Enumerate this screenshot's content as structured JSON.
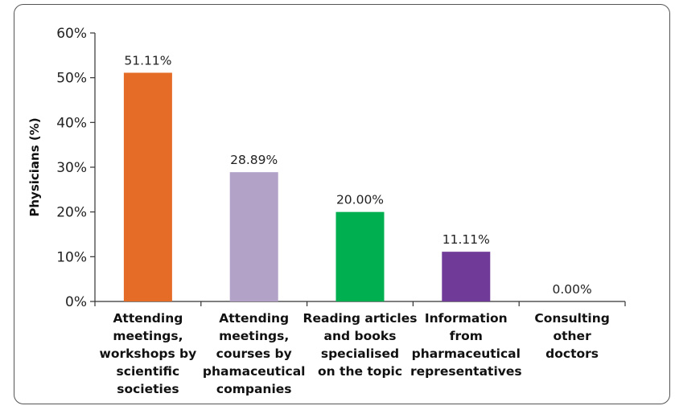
{
  "chart_data": {
    "type": "bar",
    "title": "",
    "xlabel": "",
    "ylabel": "Physicians (%)",
    "ylim": [
      0,
      60
    ],
    "yticks": [
      0,
      10,
      20,
      30,
      40,
      50,
      60
    ],
    "ytick_labels": [
      "0%",
      "10%",
      "20%",
      "30%",
      "40%",
      "50%",
      "60%"
    ],
    "grid": false,
    "legend": "none",
    "categories": [
      [
        "Attending",
        "meetings,",
        "workshops by",
        "scientific",
        "societies"
      ],
      [
        "Attending",
        "meetings,",
        "courses by",
        "phamaceutical",
        "companies"
      ],
      [
        "Reading articles",
        "and books",
        "specialised",
        "on the topic"
      ],
      [
        "Information",
        "from",
        "pharmaceutical",
        "representatives"
      ],
      [
        "Consulting",
        "other",
        "doctors"
      ]
    ],
    "values": [
      51.11,
      28.89,
      20.0,
      11.11,
      0.0
    ],
    "data_labels": [
      "51.11%",
      "28.89%",
      "20.00%",
      "11.11%",
      "0.00%"
    ],
    "colors": [
      "#e46c27",
      "#b2a2c8",
      "#00b050",
      "#703a98",
      "#cccccc"
    ]
  }
}
